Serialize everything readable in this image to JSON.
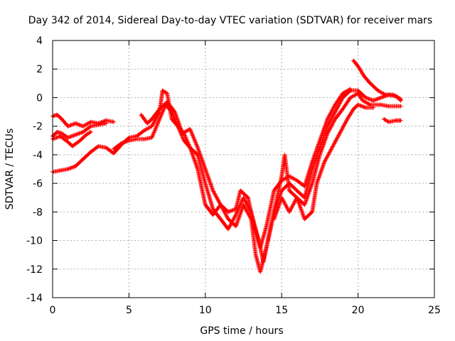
{
  "chart_data": {
    "type": "scatter",
    "title": "Day 342 of 2014, Sidereal Day-to-day VTEC variation (SDTVAR) for receiver mars",
    "xlabel": "GPS time / hours",
    "ylabel": "SDTVAR / TECUs",
    "xlim": [
      0,
      25
    ],
    "ylim": [
      -14,
      4
    ],
    "xticks": [
      0,
      5,
      10,
      15,
      20,
      25
    ],
    "yticks": [
      -14,
      -12,
      -10,
      -8,
      -6,
      -4,
      -2,
      0,
      2,
      4
    ],
    "grid": true,
    "marker": "+",
    "color": "#ff0000",
    "series": [
      {
        "points": [
          [
            0.0,
            -1.3
          ],
          [
            0.3,
            -1.2
          ],
          [
            0.6,
            -1.5
          ],
          [
            1.0,
            -2.0
          ],
          [
            1.5,
            -1.8
          ],
          [
            2.0,
            -2.0
          ],
          [
            2.5,
            -1.7
          ],
          [
            3.0,
            -1.8
          ],
          [
            3.5,
            -1.6
          ],
          [
            4.0,
            -1.7
          ]
        ]
      },
      {
        "points": [
          [
            0.0,
            -2.7
          ],
          [
            0.3,
            -2.4
          ],
          [
            0.6,
            -2.5
          ],
          [
            1.0,
            -2.8
          ],
          [
            1.5,
            -2.6
          ],
          [
            2.0,
            -2.4
          ],
          [
            2.5,
            -2.0
          ],
          [
            3.0,
            -1.9
          ],
          [
            3.5,
            -1.8
          ]
        ]
      },
      {
        "points": [
          [
            0.0,
            -2.9
          ],
          [
            0.5,
            -2.7
          ],
          [
            1.0,
            -3.1
          ],
          [
            1.3,
            -3.4
          ],
          [
            1.8,
            -3.0
          ],
          [
            2.2,
            -2.6
          ],
          [
            2.5,
            -2.4
          ]
        ]
      },
      {
        "points": [
          [
            0.0,
            -5.2
          ],
          [
            0.5,
            -5.1
          ],
          [
            1.0,
            -5.0
          ],
          [
            1.5,
            -4.8
          ],
          [
            2.0,
            -4.3
          ],
          [
            2.5,
            -3.8
          ],
          [
            3.0,
            -3.4
          ],
          [
            3.5,
            -3.5
          ],
          [
            4.0,
            -3.9
          ],
          [
            4.5,
            -3.3
          ],
          [
            5.0,
            -2.8
          ],
          [
            5.5,
            -2.7
          ],
          [
            6.0,
            -2.3
          ],
          [
            6.5,
            -2.0
          ],
          [
            7.0,
            -1.0
          ],
          [
            7.2,
            0.5
          ],
          [
            7.5,
            0.3
          ],
          [
            7.8,
            -1.5
          ],
          [
            8.2,
            -2.0
          ],
          [
            8.6,
            -2.5
          ],
          [
            9.0,
            -3.5
          ],
          [
            9.5,
            -5.0
          ],
          [
            10.0,
            -7.5
          ],
          [
            10.5,
            -8.2
          ],
          [
            11.0,
            -7.5
          ],
          [
            11.5,
            -8.5
          ],
          [
            12.0,
            -9.0
          ],
          [
            12.5,
            -7.5
          ],
          [
            13.0,
            -8.5
          ],
          [
            13.3,
            -11.0
          ],
          [
            13.6,
            -12.2
          ],
          [
            14.0,
            -10.5
          ],
          [
            14.5,
            -8.0
          ],
          [
            15.0,
            -6.5
          ],
          [
            15.5,
            -6.0
          ],
          [
            16.0,
            -6.5
          ],
          [
            16.5,
            -7.0
          ],
          [
            17.0,
            -5.0
          ],
          [
            17.5,
            -3.5
          ],
          [
            18.0,
            -2.0
          ],
          [
            18.5,
            -1.0
          ],
          [
            19.0,
            0.0
          ],
          [
            19.5,
            0.5
          ],
          [
            20.0,
            0.5
          ],
          [
            20.5,
            0.0
          ],
          [
            21.0,
            -0.2
          ],
          [
            21.5,
            0.0
          ],
          [
            22.0,
            0.2
          ],
          [
            22.5,
            0.1
          ],
          [
            22.8,
            -0.2
          ]
        ]
      },
      {
        "points": [
          [
            4.0,
            -3.6
          ],
          [
            4.5,
            -3.2
          ],
          [
            5.0,
            -3.0
          ],
          [
            5.5,
            -2.9
          ],
          [
            6.0,
            -2.9
          ],
          [
            6.5,
            -2.8
          ],
          [
            7.0,
            -1.5
          ],
          [
            7.4,
            -0.5
          ],
          [
            7.8,
            -1.0
          ],
          [
            8.2,
            -2.0
          ],
          [
            8.6,
            -3.0
          ],
          [
            9.0,
            -3.5
          ],
          [
            9.5,
            -4.0
          ],
          [
            10.0,
            -6.0
          ],
          [
            10.5,
            -7.8
          ],
          [
            11.0,
            -8.5
          ],
          [
            11.5,
            -9.2
          ],
          [
            12.0,
            -8.2
          ],
          [
            12.5,
            -7.0
          ],
          [
            13.0,
            -8.0
          ],
          [
            13.5,
            -10.0
          ],
          [
            13.8,
            -11.5
          ],
          [
            14.2,
            -9.5
          ],
          [
            14.5,
            -8.0
          ],
          [
            15.0,
            -5.5
          ],
          [
            15.2,
            -4.0
          ],
          [
            15.5,
            -6.5
          ],
          [
            16.0,
            -7.0
          ],
          [
            16.5,
            -7.5
          ],
          [
            17.0,
            -6.0
          ],
          [
            17.5,
            -4.0
          ],
          [
            18.0,
            -2.5
          ],
          [
            18.5,
            -1.5
          ],
          [
            19.0,
            -0.8
          ],
          [
            19.5,
            0.0
          ],
          [
            20.0,
            0.3
          ],
          [
            20.3,
            -0.2
          ],
          [
            20.8,
            -0.5
          ],
          [
            21.5,
            -0.5
          ],
          [
            22.0,
            -0.6
          ],
          [
            22.8,
            -0.6
          ]
        ]
      },
      {
        "points": [
          [
            5.8,
            -1.2
          ],
          [
            6.2,
            -1.8
          ],
          [
            6.5,
            -1.5
          ],
          [
            7.0,
            -0.8
          ],
          [
            7.5,
            -0.3
          ],
          [
            8.0,
            -1.0
          ],
          [
            8.5,
            -2.5
          ],
          [
            9.0,
            -2.2
          ],
          [
            9.5,
            -3.5
          ],
          [
            10.0,
            -5.0
          ],
          [
            10.5,
            -6.5
          ],
          [
            11.0,
            -7.5
          ],
          [
            11.5,
            -8.0
          ],
          [
            12.0,
            -7.8
          ],
          [
            12.3,
            -6.5
          ],
          [
            12.8,
            -7.0
          ],
          [
            13.2,
            -9.0
          ],
          [
            13.6,
            -10.5
          ],
          [
            14.0,
            -9.0
          ],
          [
            14.5,
            -6.5
          ],
          [
            15.0,
            -5.8
          ],
          [
            15.5,
            -5.5
          ],
          [
            16.0,
            -5.8
          ],
          [
            16.5,
            -6.2
          ],
          [
            17.0,
            -4.5
          ],
          [
            17.5,
            -3.0
          ],
          [
            18.0,
            -1.5
          ],
          [
            18.5,
            -0.5
          ],
          [
            19.0,
            0.3
          ],
          [
            19.5,
            0.6
          ]
        ]
      },
      {
        "points": [
          [
            14.5,
            -8.5
          ],
          [
            15.0,
            -7.0
          ],
          [
            15.5,
            -8.0
          ],
          [
            16.0,
            -7.0
          ],
          [
            16.5,
            -8.5
          ],
          [
            17.0,
            -8.0
          ],
          [
            17.3,
            -6.0
          ],
          [
            17.8,
            -4.5
          ],
          [
            18.3,
            -3.5
          ],
          [
            18.8,
            -2.5
          ],
          [
            19.3,
            -1.5
          ],
          [
            19.7,
            -0.8
          ],
          [
            20.0,
            -0.5
          ],
          [
            20.5,
            -0.7
          ],
          [
            21.0,
            -0.7
          ]
        ]
      },
      {
        "points": [
          [
            19.7,
            2.6
          ],
          [
            20.0,
            2.2
          ],
          [
            20.4,
            1.5
          ],
          [
            20.8,
            1.0
          ],
          [
            21.3,
            0.5
          ],
          [
            21.8,
            0.2
          ],
          [
            22.3,
            0.2
          ],
          [
            22.8,
            -0.1
          ]
        ]
      },
      {
        "points": [
          [
            21.7,
            -1.5
          ],
          [
            22.0,
            -1.7
          ],
          [
            22.5,
            -1.6
          ],
          [
            22.8,
            -1.6
          ]
        ]
      }
    ]
  }
}
